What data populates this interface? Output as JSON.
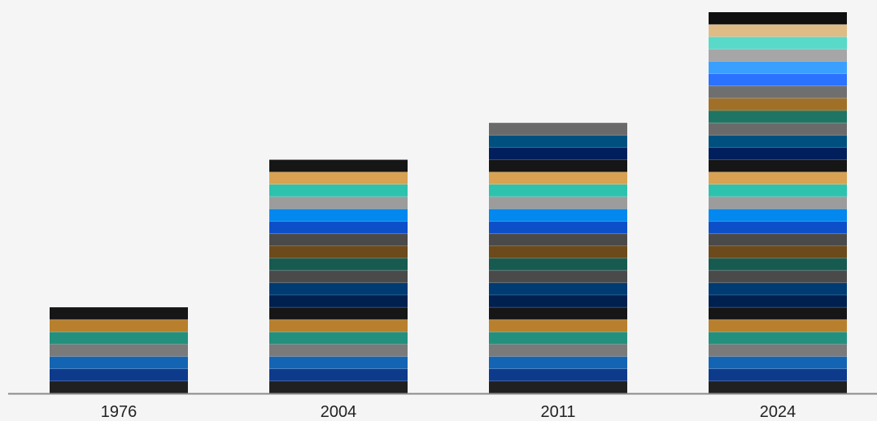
{
  "chart_data": {
    "type": "bar",
    "stacked": true,
    "title": "",
    "xlabel": "",
    "ylabel": "",
    "categories": [
      "1976",
      "2004",
      "2011",
      "2024"
    ],
    "values": [
      7,
      19,
      22,
      31
    ],
    "unit_per_segment": 1,
    "ylim": [
      0,
      31
    ],
    "grid": false,
    "legend": "none",
    "segment_colors": [
      "#202020",
      "#0e3a8c",
      "#1464b4",
      "#7a7a7a",
      "#23907e",
      "#b8802c",
      "#161616",
      "#00204f",
      "#003b73",
      "#4a4a4a",
      "#175a50",
      "#6c4a1c",
      "#4a4a4a",
      "#0d4fc9",
      "#0288ef",
      "#9c9c9c",
      "#2dc2ad",
      "#d8a252",
      "#161616",
      "#001f5c",
      "#00507f",
      "#6a6a6a",
      "#1e7563",
      "#a07028",
      "#6f6f6f",
      "#2a72ff",
      "#3aa0ff",
      "#a6a6a6",
      "#59d9c8",
      "#dfbb85",
      "#101010",
      "#001a45"
    ],
    "colors": {
      "background": "#f5f5f5",
      "axis": "#8a8a8a",
      "text": "#222222"
    }
  }
}
